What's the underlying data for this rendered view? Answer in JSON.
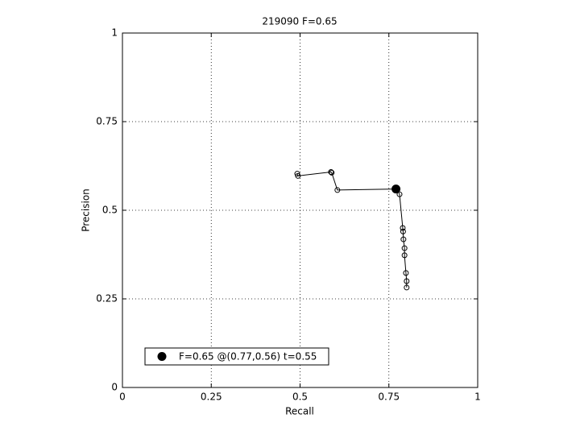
{
  "chart_data": {
    "type": "line",
    "title": "219090 F=0.65",
    "xlabel": "Recall",
    "ylabel": "Precision",
    "x": [
      0.492,
      0.494,
      0.587,
      0.589,
      0.605,
      0.773,
      0.78,
      0.789,
      0.79,
      0.791,
      0.794,
      0.794,
      0.798,
      0.8,
      0.8
    ],
    "values": [
      0.603,
      0.597,
      0.608,
      0.606,
      0.557,
      0.56,
      0.545,
      0.45,
      0.44,
      0.418,
      0.393,
      0.373,
      0.323,
      0.3,
      0.282
    ],
    "color": "#000000",
    "best": {
      "x": 0.77,
      "y": 0.56,
      "label": "F=0.65 @(0.77,0.56) t=0.55"
    },
    "xlim": [
      0,
      1
    ],
    "ylim": [
      0,
      1
    ],
    "xticks": [
      0,
      0.25,
      0.5,
      0.75,
      1
    ],
    "yticks": [
      0,
      0.25,
      0.5,
      0.75,
      1
    ],
    "grid": true
  }
}
